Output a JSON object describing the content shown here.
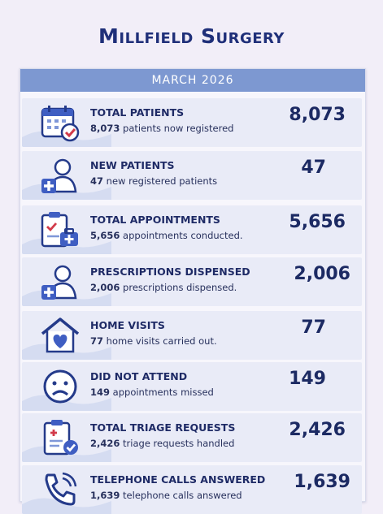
{
  "title": "Millfield Surgery",
  "month": "MARCH 2026",
  "stats": [
    {
      "label": "TOTAL PATIENTS",
      "value": "8,073",
      "desc_num": "8,073",
      "desc_text": " patients now registered",
      "icon": "calendar-check-icon"
    },
    {
      "label": "NEW PATIENTS",
      "value": "47",
      "desc_num": "47",
      "desc_text": " new registered patients",
      "icon": "new-patient-icon"
    },
    {
      "label": "TOTAL APPOINTMENTS",
      "value": "5,656",
      "desc_num": "5,656",
      "desc_text": " appointments conducted.",
      "icon": "clipboard-medkit-icon"
    },
    {
      "label": "PRESCRIPTIONS DISPENSED",
      "value": "2,006",
      "desc_num": "2,006",
      "desc_text": " prescriptions dispensed.",
      "icon": "patient-plus-icon"
    },
    {
      "label": "HOME VISITS",
      "value": "77",
      "desc_num": "77",
      "desc_text": " home visits carried out.",
      "icon": "house-heart-icon"
    },
    {
      "label": "DID NOT ATTEND",
      "value": "149",
      "desc_num": "149",
      "desc_text": " appointments missed",
      "icon": "sad-face-icon"
    },
    {
      "label": "TOTAL TRIAGE REQUESTS",
      "value": "2,426",
      "desc_num": "2,426",
      "desc_text": " triage requests handled",
      "icon": "clipboard-check-icon"
    },
    {
      "label": "TELEPHONE CALLS ANSWERED",
      "value": "1,639",
      "desc_num": "1,639",
      "desc_text": " telephone calls answered",
      "icon": "phone-icon"
    }
  ]
}
